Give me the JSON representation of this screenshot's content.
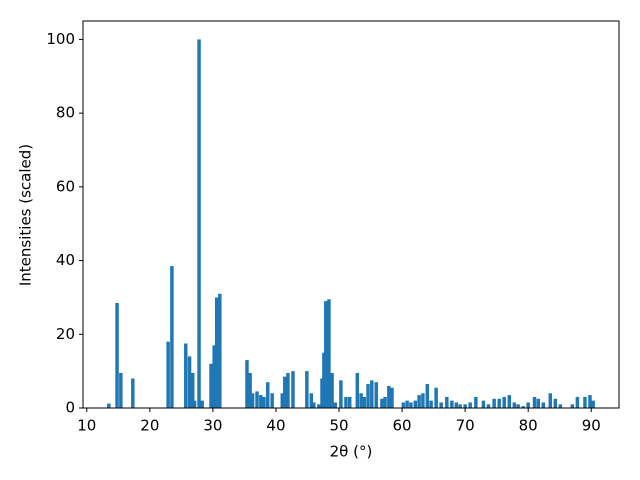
{
  "chart_data": {
    "type": "bar",
    "xlabel": "2θ (°)",
    "ylabel": "Intensities (scaled)",
    "x": [
      13.5,
      14.8,
      15.4,
      17.3,
      22.9,
      23.5,
      25.7,
      26.3,
      26.8,
      27.1,
      27.8,
      28.3,
      29.7,
      30.2,
      30.6,
      31.1,
      35.4,
      35.9,
      36.3,
      37.0,
      37.6,
      38.1,
      38.7,
      39.4,
      41.0,
      41.4,
      41.9,
      42.7,
      44.9,
      45.6,
      46.0,
      46.8,
      47.3,
      47.6,
      47.9,
      48.4,
      48.9,
      49.4,
      50.3,
      51.1,
      51.7,
      52.9,
      53.5,
      54.0,
      54.6,
      55.2,
      55.9,
      56.8,
      57.3,
      57.9,
      58.4,
      60.2,
      60.8,
      61.4,
      62.1,
      62.7,
      63.3,
      64.0,
      64.6,
      65.4,
      66.2,
      67.1,
      67.9,
      68.6,
      69.2,
      70.0,
      70.8,
      71.7,
      72.9,
      73.7,
      74.6,
      75.4,
      76.2,
      77.0,
      77.8,
      78.4,
      79.2,
      80.0,
      81.0,
      81.6,
      82.4,
      83.5,
      84.3,
      85.1,
      87.0,
      87.8,
      89.0,
      89.8,
      90.3
    ],
    "values": [
      1.2,
      28.5,
      9.5,
      8,
      18,
      38.5,
      17.5,
      14,
      9.5,
      2,
      100,
      2,
      12,
      17,
      30,
      31,
      13,
      9.5,
      4,
      4.5,
      3.5,
      3,
      7,
      4,
      4,
      8.5,
      9.5,
      10,
      10,
      4,
      1.5,
      1,
      8,
      15,
      29,
      29.5,
      9.5,
      1.5,
      7.5,
      3,
      3,
      9.5,
      4,
      3,
      6.5,
      7.5,
      7,
      2.5,
      3,
      6,
      5.5,
      1.5,
      2,
      1.5,
      2,
      3.5,
      4,
      6.5,
      2,
      5.5,
      1.5,
      3,
      2,
      1.5,
      1,
      1,
      1.5,
      3,
      2,
      1,
      2.5,
      2.5,
      3,
      3.5,
      1.5,
      1,
      0.5,
      1.5,
      3,
      2.5,
      1.5,
      4,
      2.5,
      1,
      1,
      3,
      3,
      3.5,
      2
    ],
    "color": "#1f77b4",
    "xlim": [
      9.4,
      94.4
    ],
    "ylim": [
      0,
      105
    ],
    "xticks": [
      10,
      20,
      30,
      40,
      50,
      60,
      70,
      80,
      90
    ],
    "yticks": [
      0,
      20,
      40,
      60,
      80,
      100
    ]
  }
}
